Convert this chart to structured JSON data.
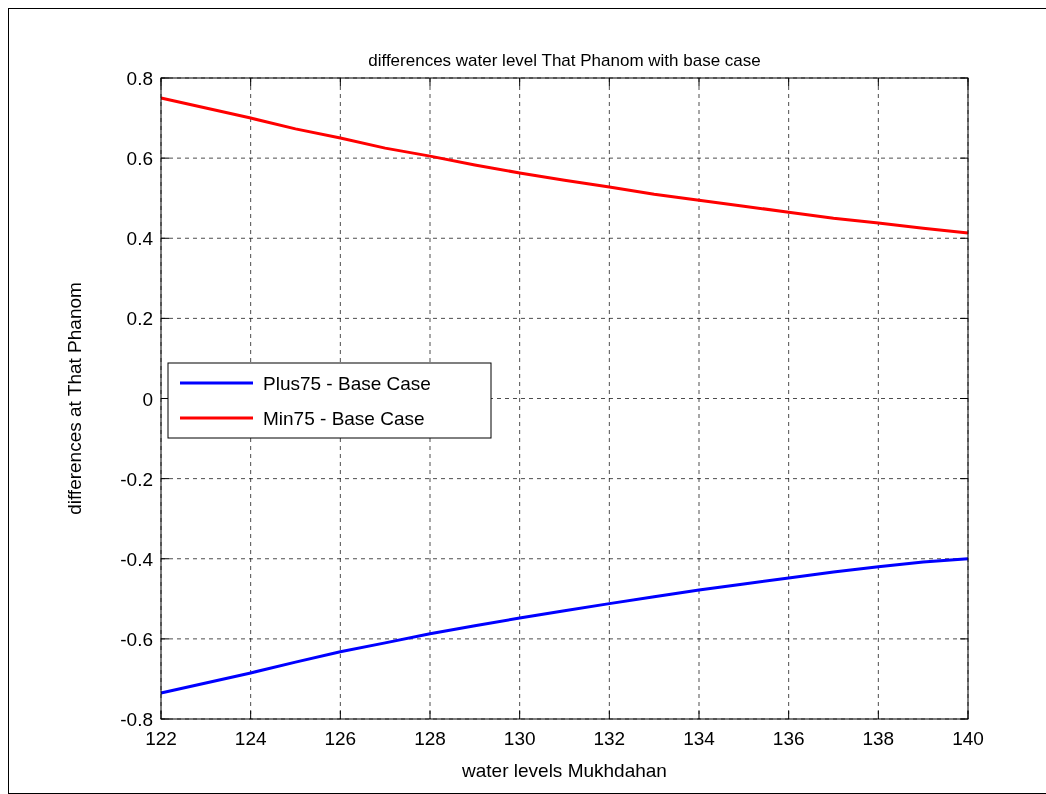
{
  "chart_data": {
    "type": "line",
    "title": "differences water level That Phanom with base case",
    "xlabel": "water levels Mukhdahan",
    "ylabel": "differences at That Phanom",
    "x": [
      122,
      123,
      124,
      125,
      126,
      127,
      128,
      129,
      130,
      131,
      132,
      133,
      134,
      135,
      136,
      137,
      138,
      139,
      140
    ],
    "series": [
      {
        "name": "Plus75 - Base Case",
        "color": "#0000ff",
        "values": [
          -0.735,
          -0.71,
          -0.685,
          -0.658,
          -0.632,
          -0.61,
          -0.587,
          -0.567,
          -0.548,
          -0.53,
          -0.512,
          -0.495,
          -0.478,
          -0.463,
          -0.448,
          -0.433,
          -0.42,
          -0.408,
          -0.4
        ]
      },
      {
        "name": "Min75 - Base Case",
        "color": "#ff0000",
        "values": [
          0.75,
          0.725,
          0.7,
          0.673,
          0.65,
          0.625,
          0.605,
          0.583,
          0.563,
          0.545,
          0.528,
          0.51,
          0.495,
          0.48,
          0.465,
          0.45,
          0.438,
          0.425,
          0.413
        ]
      }
    ],
    "xlim": [
      122,
      140
    ],
    "xticks": [
      122,
      124,
      126,
      128,
      130,
      132,
      134,
      136,
      138,
      140
    ],
    "ylim": [
      -0.8,
      0.8
    ],
    "yticks": [
      -0.8,
      -0.6,
      -0.4,
      -0.2,
      0,
      0.2,
      0.4,
      0.6,
      0.8
    ],
    "grid": true,
    "legend": "left",
    "line_style": "solid",
    "marker": "none"
  }
}
